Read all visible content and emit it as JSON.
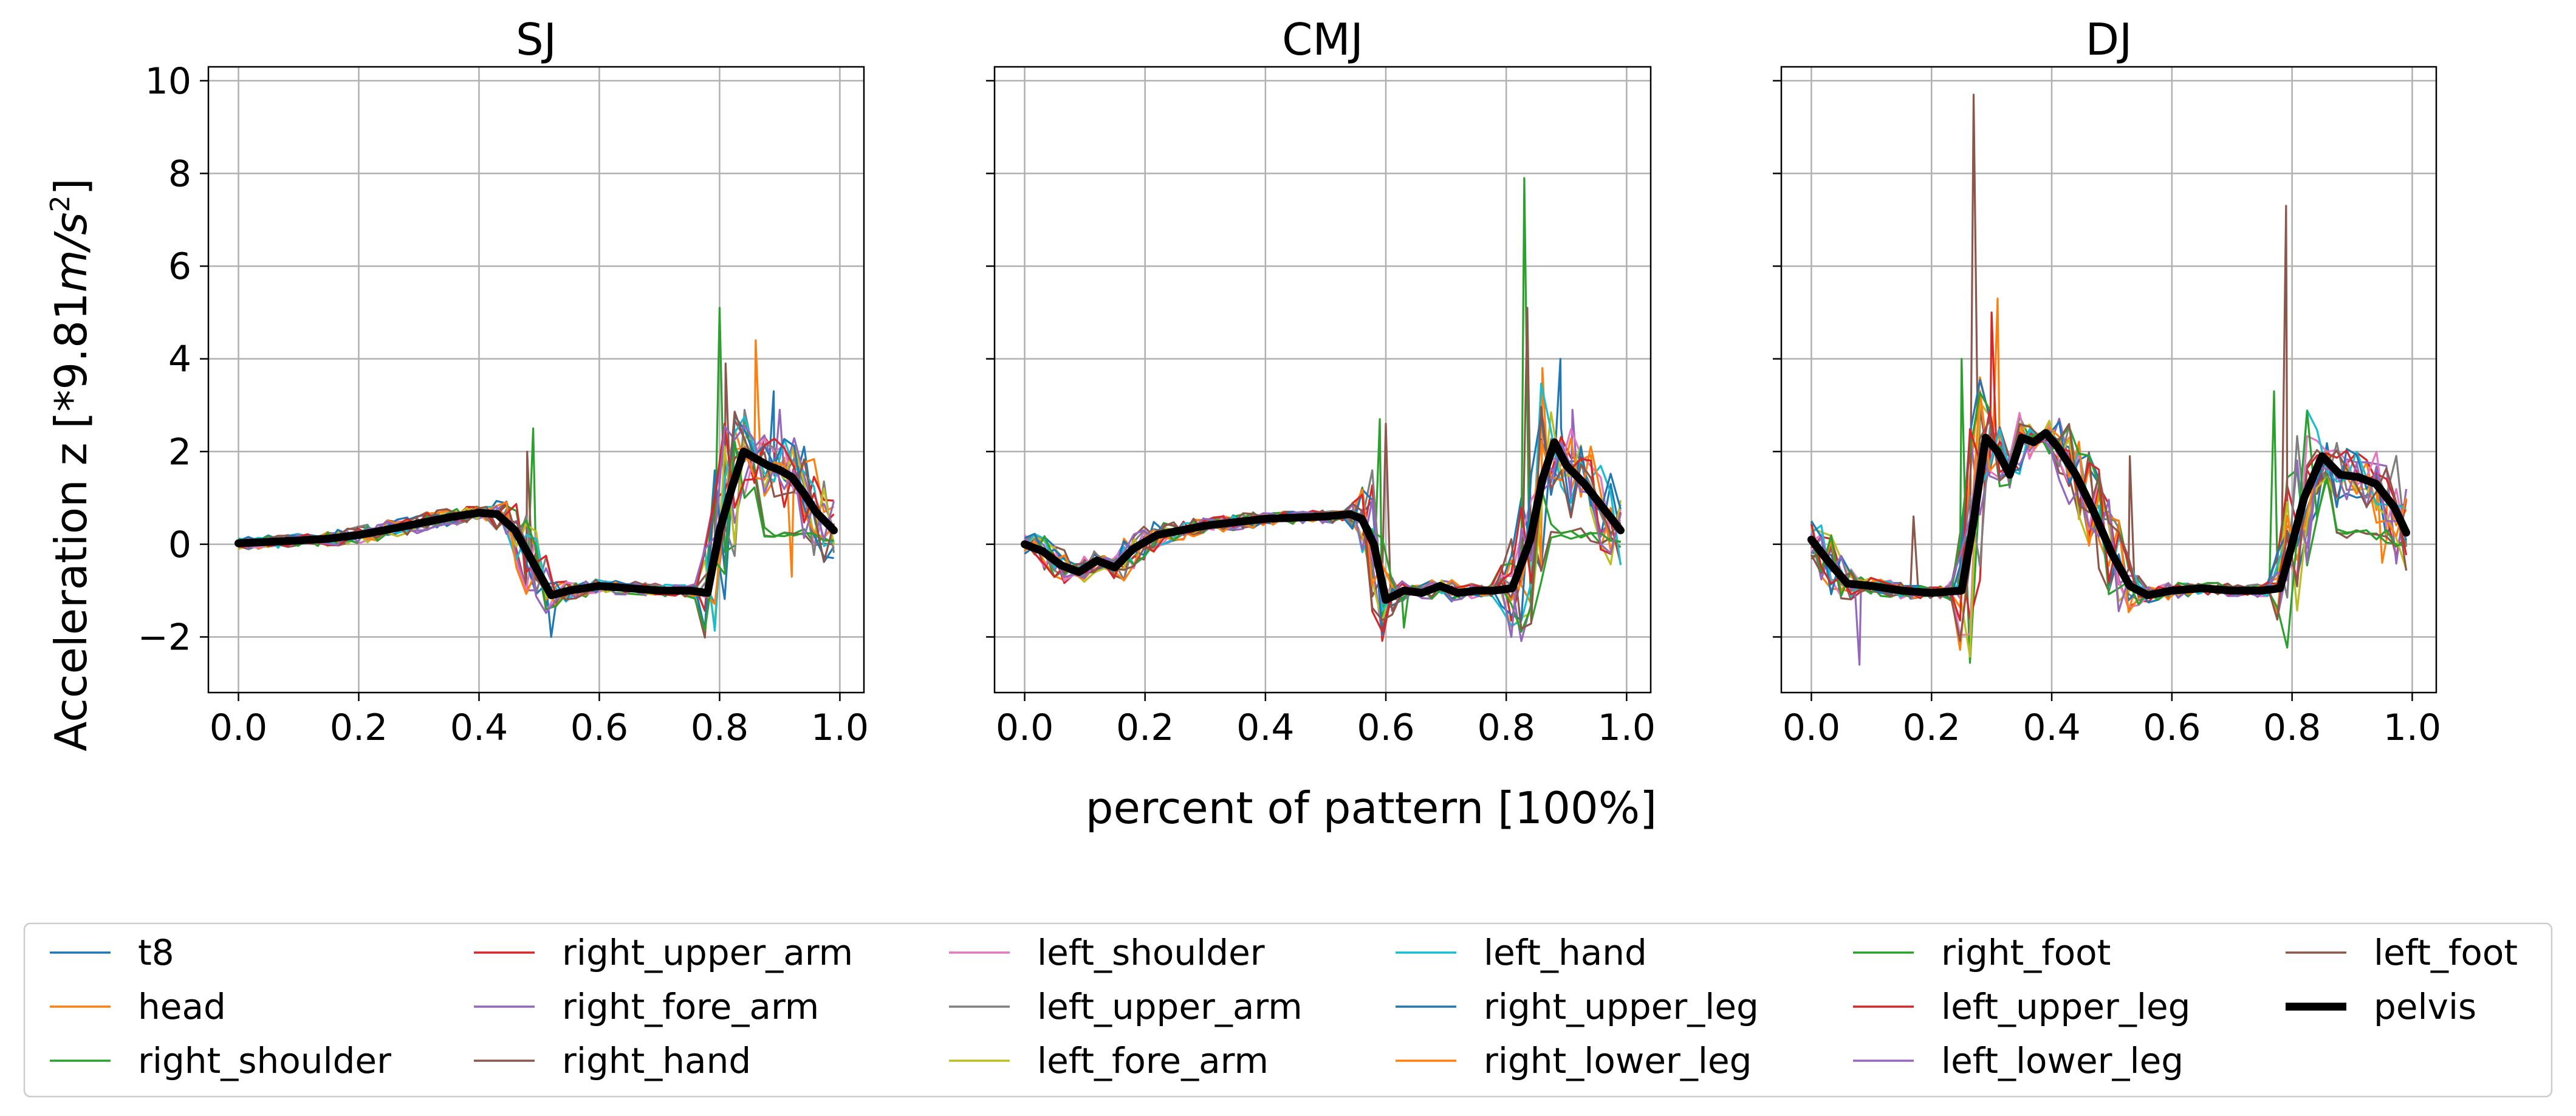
{
  "chart_data": {
    "type": "line",
    "xlabel": "percent of pattern [100%]",
    "ylabel_prefix": "Acceleration z [*9.81",
    "ylabel_math": "m/s",
    "ylabel_exp": "2",
    "ylabel_suffix": "]",
    "ylim": [
      -3.2,
      10.3
    ],
    "xlim": [
      -0.05,
      1.04
    ],
    "x_ticks": [
      0.0,
      0.2,
      0.4,
      0.6,
      0.8,
      1.0
    ],
    "x_tick_labels": [
      "0.0",
      "0.2",
      "0.4",
      "0.6",
      "0.8",
      "1.0"
    ],
    "y_ticks": [
      -2,
      0,
      2,
      4,
      6,
      8,
      10
    ],
    "y_tick_labels": [
      "−2",
      "0",
      "2",
      "4",
      "6",
      "8",
      "10"
    ],
    "grid": true,
    "legend_position": "bottom",
    "series_names": [
      "t8",
      "head",
      "right_shoulder",
      "right_upper_arm",
      "right_fore_arm",
      "right_hand",
      "left_shoulder",
      "left_upper_arm",
      "left_fore_arm",
      "left_hand",
      "right_upper_leg",
      "right_lower_leg",
      "right_foot",
      "left_upper_leg",
      "left_lower_leg",
      "left_foot",
      "pelvis"
    ],
    "series_colors": [
      "#1f77b4",
      "#ff7f0e",
      "#2ca02c",
      "#d62728",
      "#9467bd",
      "#8c564b",
      "#e377c2",
      "#7f7f7f",
      "#bcbd22",
      "#17becf",
      "#1f77b4",
      "#ff7f0e",
      "#2ca02c",
      "#d62728",
      "#9467bd",
      "#8c564b",
      "#000000"
    ],
    "panels": [
      {
        "title": "SJ",
        "x": [
          0.0,
          0.05,
          0.1,
          0.15,
          0.2,
          0.25,
          0.3,
          0.35,
          0.4,
          0.43,
          0.46,
          0.49,
          0.52,
          0.55,
          0.6,
          0.65,
          0.7,
          0.75,
          0.78,
          0.8,
          0.82,
          0.84,
          0.86,
          0.88,
          0.9,
          0.92,
          0.94,
          0.96,
          0.99
        ],
        "pelvis": [
          0.02,
          0.05,
          0.08,
          0.12,
          0.2,
          0.32,
          0.45,
          0.58,
          0.68,
          0.65,
          0.3,
          -0.4,
          -1.1,
          -1.0,
          -0.9,
          -0.95,
          -1.0,
          -1.0,
          -1.05,
          0.3,
          1.2,
          2.0,
          1.85,
          1.7,
          1.6,
          1.45,
          1.1,
          0.7,
          0.3
        ],
        "spikes": [
          {
            "series": 2,
            "x": 0.49,
            "y": 2.5
          },
          {
            "series": 5,
            "x": 0.48,
            "y": 2.0
          },
          {
            "series": 0,
            "x": 0.52,
            "y": -2.0
          },
          {
            "series": 2,
            "x": 0.8,
            "y": 5.1
          },
          {
            "series": 5,
            "x": 0.81,
            "y": 3.9
          },
          {
            "series": 1,
            "x": 0.86,
            "y": 4.4
          },
          {
            "series": 0,
            "x": 0.89,
            "y": 3.3
          },
          {
            "series": 4,
            "x": 0.9,
            "y": 2.9
          },
          {
            "series": 1,
            "x": 0.92,
            "y": -0.7
          }
        ]
      },
      {
        "title": "CMJ",
        "x": [
          0.0,
          0.03,
          0.06,
          0.09,
          0.12,
          0.15,
          0.18,
          0.22,
          0.3,
          0.4,
          0.5,
          0.54,
          0.56,
          0.58,
          0.6,
          0.63,
          0.66,
          0.69,
          0.72,
          0.75,
          0.78,
          0.81,
          0.84,
          0.86,
          0.88,
          0.9,
          0.93,
          0.96,
          0.99
        ],
        "pelvis": [
          0.0,
          -0.15,
          -0.45,
          -0.6,
          -0.35,
          -0.5,
          -0.1,
          0.2,
          0.4,
          0.55,
          0.6,
          0.65,
          0.55,
          0.0,
          -1.2,
          -1.0,
          -1.05,
          -0.9,
          -1.05,
          -1.0,
          -1.0,
          -0.95,
          0.1,
          1.4,
          2.2,
          1.7,
          1.3,
          0.8,
          0.3
        ],
        "spikes": [
          {
            "series": 2,
            "x": 0.59,
            "y": 2.7
          },
          {
            "series": 5,
            "x": 0.6,
            "y": 2.6
          },
          {
            "series": 2,
            "x": 0.83,
            "y": 7.9
          },
          {
            "series": 5,
            "x": 0.835,
            "y": 5.1
          },
          {
            "series": 0,
            "x": 0.89,
            "y": 4.0
          },
          {
            "series": 1,
            "x": 0.86,
            "y": 3.8
          },
          {
            "series": 4,
            "x": 0.91,
            "y": 2.9
          },
          {
            "series": 2,
            "x": 0.63,
            "y": -1.8
          }
        ]
      },
      {
        "title": "DJ",
        "x": [
          0.0,
          0.03,
          0.06,
          0.1,
          0.15,
          0.2,
          0.25,
          0.27,
          0.29,
          0.31,
          0.33,
          0.35,
          0.37,
          0.39,
          0.41,
          0.44,
          0.47,
          0.5,
          0.53,
          0.56,
          0.6,
          0.65,
          0.7,
          0.75,
          0.78,
          0.8,
          0.82,
          0.85,
          0.88,
          0.91,
          0.94,
          0.97,
          0.99
        ],
        "pelvis": [
          0.1,
          -0.4,
          -0.85,
          -0.9,
          -1.0,
          -1.05,
          -1.0,
          0.5,
          2.3,
          2.0,
          1.5,
          2.3,
          2.2,
          2.4,
          2.1,
          1.5,
          0.7,
          -0.2,
          -0.9,
          -1.1,
          -1.0,
          -0.95,
          -1.0,
          -1.0,
          -0.95,
          0.0,
          1.0,
          1.9,
          1.5,
          1.45,
          1.3,
          0.8,
          0.25
        ],
        "spikes": [
          {
            "series": 5,
            "x": 0.27,
            "y": 9.7
          },
          {
            "series": 2,
            "x": 0.25,
            "y": 4.0
          },
          {
            "series": 1,
            "x": 0.31,
            "y": 5.3
          },
          {
            "series": 3,
            "x": 0.3,
            "y": 5.0
          },
          {
            "series": 4,
            "x": 0.08,
            "y": -2.6
          },
          {
            "series": 5,
            "x": 0.17,
            "y": 0.6
          },
          {
            "series": 5,
            "x": 0.79,
            "y": 7.3
          },
          {
            "series": 2,
            "x": 0.77,
            "y": 3.3
          },
          {
            "series": 5,
            "x": 0.53,
            "y": 1.9
          },
          {
            "series": 1,
            "x": 0.95,
            "y": -0.4
          }
        ]
      }
    ]
  }
}
